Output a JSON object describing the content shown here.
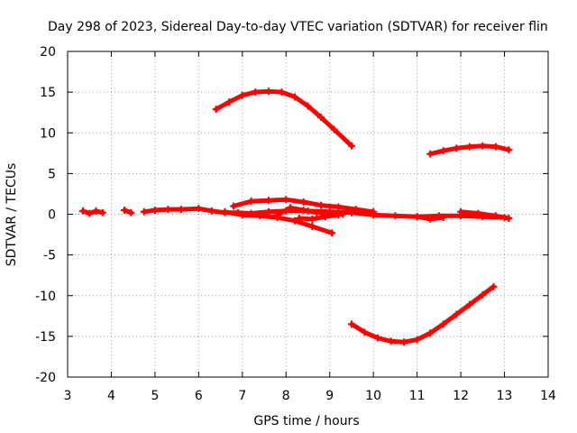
{
  "chart_data": {
    "type": "scatter",
    "title": "Day 298 of 2023, Sidereal Day-to-day VTEC variation (SDTVAR) for receiver flin",
    "xlabel": "GPS time / hours",
    "ylabel": "SDTVAR / TECUs",
    "xlim": [
      3,
      14
    ],
    "ylim": [
      -20,
      20
    ],
    "xticks": [
      3,
      4,
      5,
      6,
      7,
      8,
      9,
      10,
      11,
      12,
      13,
      14
    ],
    "yticks": [
      -20,
      -15,
      -10,
      -5,
      0,
      5,
      10,
      15,
      20
    ],
    "grid": true,
    "color": "#ff0000",
    "series": [
      {
        "name": "arc-high",
        "points": [
          [
            6.4,
            12.9
          ],
          [
            6.7,
            13.8
          ],
          [
            7.0,
            14.6
          ],
          [
            7.3,
            15.0
          ],
          [
            7.6,
            15.1
          ],
          [
            7.9,
            15.0
          ],
          [
            8.2,
            14.4
          ],
          [
            8.5,
            13.3
          ],
          [
            8.8,
            11.9
          ],
          [
            9.1,
            10.4
          ],
          [
            9.5,
            8.4
          ]
        ]
      },
      {
        "name": "arc-right-high",
        "points": [
          [
            11.3,
            7.4
          ],
          [
            11.6,
            7.8
          ],
          [
            11.9,
            8.1
          ],
          [
            12.2,
            8.3
          ],
          [
            12.5,
            8.4
          ],
          [
            12.8,
            8.3
          ],
          [
            13.1,
            7.9
          ]
        ]
      },
      {
        "name": "arc-low",
        "points": [
          [
            9.5,
            -13.5
          ],
          [
            9.8,
            -14.5
          ],
          [
            10.1,
            -15.2
          ],
          [
            10.4,
            -15.6
          ],
          [
            10.7,
            -15.7
          ],
          [
            11.0,
            -15.4
          ],
          [
            11.3,
            -14.6
          ],
          [
            11.6,
            -13.5
          ],
          [
            11.9,
            -12.3
          ],
          [
            12.2,
            -11.1
          ],
          [
            12.5,
            -9.9
          ],
          [
            12.75,
            -8.9
          ]
        ]
      },
      {
        "name": "seg-a",
        "points": [
          [
            3.35,
            0.4
          ],
          [
            3.5,
            0.1
          ],
          [
            3.65,
            0.4
          ],
          [
            3.8,
            0.2
          ]
        ]
      },
      {
        "name": "seg-b",
        "points": [
          [
            4.3,
            0.5
          ],
          [
            4.45,
            0.2
          ]
        ]
      },
      {
        "name": "main-cluster",
        "points": [
          [
            4.75,
            0.3
          ],
          [
            5.0,
            0.5
          ],
          [
            5.3,
            0.6
          ],
          [
            5.6,
            0.6
          ],
          [
            6.0,
            0.7
          ],
          [
            6.3,
            0.4
          ],
          [
            6.6,
            0.2
          ],
          [
            6.9,
            0.2
          ],
          [
            7.2,
            0.1
          ],
          [
            7.6,
            0.3
          ],
          [
            8.0,
            0.4
          ],
          [
            8.5,
            0.4
          ],
          [
            9.0,
            0.3
          ],
          [
            9.5,
            0.2
          ],
          [
            10.0,
            -0.1
          ],
          [
            10.5,
            -0.2
          ],
          [
            11.0,
            -0.3
          ],
          [
            11.5,
            -0.2
          ],
          [
            12.0,
            -0.2
          ],
          [
            12.5,
            -0.3
          ],
          [
            13.0,
            -0.4
          ]
        ]
      },
      {
        "name": "rise-arc",
        "points": [
          [
            6.8,
            1.0
          ],
          [
            7.2,
            1.6
          ],
          [
            7.6,
            1.7
          ],
          [
            8.0,
            1.8
          ],
          [
            8.4,
            1.5
          ],
          [
            8.8,
            1.1
          ],
          [
            9.2,
            0.9
          ],
          [
            9.6,
            0.6
          ],
          [
            10.0,
            0.3
          ]
        ]
      },
      {
        "name": "dip-arc",
        "points": [
          [
            6.6,
            0.3
          ],
          [
            7.0,
            -0.1
          ],
          [
            7.4,
            -0.2
          ],
          [
            7.8,
            -0.4
          ],
          [
            8.2,
            -0.8
          ],
          [
            8.6,
            -1.5
          ],
          [
            9.05,
            -2.3
          ]
        ]
      },
      {
        "name": "loop",
        "points": [
          [
            7.8,
            -0.1
          ],
          [
            8.1,
            0.8
          ],
          [
            8.4,
            0.5
          ],
          [
            8.7,
            0.2
          ],
          [
            9.1,
            0.1
          ],
          [
            9.3,
            0.0
          ]
        ]
      },
      {
        "name": "tail-lower",
        "points": [
          [
            8.3,
            -0.5
          ],
          [
            8.6,
            -0.6
          ],
          [
            8.9,
            -0.3
          ],
          [
            9.2,
            -0.1
          ]
        ]
      },
      {
        "name": "right-tail",
        "points": [
          [
            11.0,
            -0.3
          ],
          [
            11.3,
            -0.6
          ],
          [
            11.6,
            -0.4
          ]
        ]
      },
      {
        "name": "end-seg",
        "points": [
          [
            12.0,
            0.3
          ],
          [
            12.4,
            0.1
          ],
          [
            12.8,
            -0.2
          ],
          [
            13.1,
            -0.5
          ]
        ]
      }
    ]
  }
}
